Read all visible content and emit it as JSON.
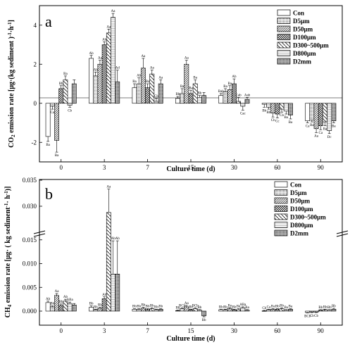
{
  "chart_data": [
    {
      "type": "bar",
      "panel_label": "a",
      "xlabel": "Culture time (d)",
      "ylabel": "CO2 emission rate [μg·(kg sediment)⁻¹·h⁻¹]",
      "ylabel_parts": {
        "a": "CO",
        "b": "2",
        "c": " emission rate [μg·(kg sediment )",
        "d": "-1",
        "e": "·h",
        "f": "-1",
        "g": "]"
      },
      "categories": [
        "0",
        "3",
        "7",
        "15",
        "30",
        "60",
        "90"
      ],
      "ylim": [
        -3,
        5
      ],
      "yticks": [
        -2,
        0,
        2,
        4
      ],
      "series": [
        {
          "name": "Con",
          "values": [
            -1.7,
            2.3,
            0.8,
            0.25,
            0.4,
            -0.05,
            -0.9
          ],
          "errors": [
            0.25,
            0.15,
            0.2,
            0.1,
            0.1,
            0.15,
            0.1
          ],
          "labels": [
            "Ba",
            "Ab",
            "Ba",
            "Bb",
            "Bab",
            "Bb",
            "Ca"
          ]
        },
        {
          "name": "D5μm",
          "values": [
            -0.15,
            1.4,
            1.0,
            0.5,
            0.6,
            -0.2,
            -0.85
          ],
          "errors": [
            0.15,
            0.2,
            0.3,
            0.25,
            0.15,
            0.1,
            0.1
          ],
          "labels": [
            "Ca",
            "Ab",
            "Ab",
            "Ba",
            "Ba",
            "Bb",
            "Ba"
          ]
        },
        {
          "name": "D50μm",
          "values": [
            -1.9,
            2.0,
            1.8,
            2.0,
            0.7,
            -0.5,
            -1.3
          ],
          "errors": [
            0.6,
            0.2,
            0.5,
            0.2,
            0.2,
            0.2,
            0.2
          ],
          "labels": [
            "Ba",
            "Aa",
            "Aa",
            "Aa",
            "Ba",
            "Cb",
            "Aa"
          ]
        },
        {
          "name": "D100μm",
          "values": [
            0.75,
            3.0,
            0.8,
            0.5,
            1.0,
            -0.55,
            -1.15
          ],
          "errors": [
            0.15,
            0.15,
            0.2,
            0.15,
            0.25,
            0.2,
            0.2
          ],
          "labels": [
            "Bb",
            "Ab",
            "Ba",
            "Ba",
            "Ab",
            "Cc",
            "Ca"
          ]
        },
        {
          "name": "D300~500μm",
          "values": [
            1.2,
            3.6,
            1.5,
            1.0,
            0.1,
            -0.3,
            -0.95
          ],
          "errors": [
            0.2,
            0.2,
            0.2,
            0.2,
            0.2,
            0.15,
            0.2
          ],
          "labels": [
            "Ba",
            "Aa",
            "Aa",
            "Ba",
            "Cab",
            "Cb",
            "Ba"
          ]
        },
        {
          "name": "D800μm",
          "values": [
            -0.1,
            4.4,
            0.1,
            0.3,
            -0.15,
            -0.4,
            -1.4
          ],
          "errors": [
            0.1,
            0.2,
            0.15,
            0.1,
            0.2,
            0.15,
            0.15
          ],
          "labels": [
            "Cb",
            "Aa",
            "Cb",
            "Bb",
            "Cac",
            "Ba",
            "Dc"
          ]
        },
        {
          "name": "D2mm",
          "values": [
            1.0,
            1.1,
            1.0,
            0.4,
            0.2,
            -0.6,
            -0.9
          ],
          "errors": [
            0.2,
            0.6,
            0.2,
            0.15,
            0.1,
            0.2,
            0.1
          ],
          "labels": [
            "",
            "Ad",
            "Aa",
            "",
            "Aab",
            "Ba",
            "Ba"
          ]
        }
      ],
      "legend": "top-right"
    },
    {
      "type": "bar",
      "panel_label": "b",
      "xlabel": "Culture time (d)",
      "ylabel": "CH4 emission rate [μg·(kg sediment)⁻¹·h⁻¹]",
      "ylabel_parts": {
        "a": "CH",
        "b": "4",
        "c": " emission rate [μg· ( kg sediment",
        "d": "-1",
        "e": "· h",
        "f": "-1",
        "g": ")]"
      },
      "categories": [
        "0",
        "3",
        "7",
        "15",
        "30",
        "60",
        "90"
      ],
      "yticks": [
        0.0,
        0.005,
        0.01,
        0.015,
        0.03,
        0.035
      ],
      "ytick_labels": [
        "0.000",
        "0.005",
        "0.010",
        "0.015",
        "0.030",
        "0.035"
      ],
      "axis_break": [
        0.016,
        0.025
      ],
      "series": [
        {
          "name": "Con",
          "values": [
            0.0018,
            0.0008,
            0.0004,
            0.0001,
            0.0003,
            5e-05,
            -0.0003
          ],
          "errors": [
            0.0003,
            0.0003,
            0.0001,
            0.0001,
            0.0001,
            0.0001,
            0.0001
          ],
          "labels": [
            "Ab",
            "Bb",
            "Bb",
            "Bb",
            "Bb",
            "Cb",
            "BCb"
          ]
        },
        {
          "name": "D5μm",
          "values": [
            0.0009,
            0.0003,
            0.0004,
            0.0005,
            0.0003,
            0.0003,
            -0.0002
          ],
          "errors": [
            0.0002,
            0.0001,
            0.0001,
            0.0002,
            0.0001,
            0.0001,
            0.0001
          ],
          "labels": [
            "Bb",
            "Bb",
            "Bb",
            "BCb",
            "Bb",
            "Ca",
            "Cb"
          ]
        },
        {
          "name": "D50μm",
          "values": [
            0.0033,
            0.0006,
            0.0006,
            0.0009,
            0.0006,
            0.0004,
            -0.0002
          ],
          "errors": [
            0.0004,
            0.0002,
            0.0002,
            0.0003,
            0.0001,
            0.0001,
            0.0001
          ],
          "labels": [
            "Aa",
            "Bb",
            "Bb",
            "Aa",
            "Ba",
            "Ba",
            "Cb"
          ]
        },
        {
          "name": "D100μm",
          "values": [
            0.0012,
            0.0026,
            0.0004,
            0.0003,
            0.0003,
            0.0004,
            0.0002
          ],
          "errors": [
            0.0003,
            0.0004,
            0.0001,
            0.0001,
            0.0001,
            0.0001,
            0.0001
          ],
          "labels": [
            "Bb",
            "Ab",
            "Bb",
            "Bb",
            "Bb",
            "Bb",
            "Bb"
          ]
        },
        {
          "name": "D300~500μm",
          "values": [
            0.0021,
            0.0288,
            0.0005,
            0.0005,
            0.0003,
            0.0005,
            0.0003
          ],
          "errors": [
            0.0004,
            0.0045,
            0.0002,
            0.0002,
            0.0002,
            0.0002,
            0.0001
          ],
          "labels": [
            "Ab",
            "Aa",
            "Bb",
            "BCb",
            "Ba",
            "Bb",
            "Bb"
          ]
        },
        {
          "name": "D800μm",
          "values": [
            0.0016,
            0.0078,
            0.0003,
            0.0002,
            0.0007,
            0.0002,
            0.0002
          ],
          "errors": [
            0.0003,
            0.007,
            0.0001,
            0.0001,
            0.0002,
            0.0001,
            0.0001
          ],
          "labels": [
            "ABa",
            "Ab",
            "Bb",
            "Bb",
            "ABa",
            "Ba",
            "Bb"
          ]
        },
        {
          "name": "D2mm",
          "values": [
            0.0013,
            0.0078,
            0.0004,
            -0.001,
            0.0002,
            0.0004,
            0.0004
          ],
          "errors": [
            0.0003,
            0.007,
            0.0001,
            0.0002,
            0.0001,
            0.0001,
            0.0002
          ],
          "labels": [
            "",
            "Ab",
            "Bb",
            "Bb",
            "Ba",
            "Ba",
            "Bb"
          ]
        }
      ],
      "legend": "top-right"
    }
  ],
  "colors": {
    "axis": "#000000",
    "bar_fill": "#ffffff",
    "bar_stroke": "#000000",
    "pattern": "#333333"
  }
}
